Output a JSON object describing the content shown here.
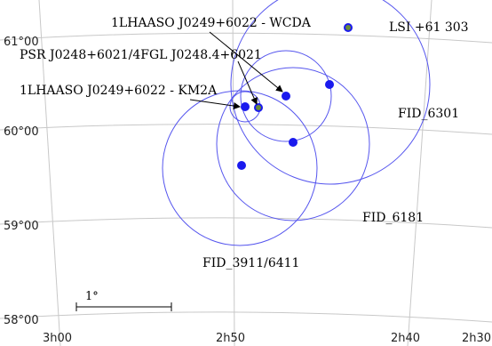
{
  "axes": {
    "dec_labels": [
      "61°00",
      "60°00",
      "59°00",
      "58°00"
    ],
    "ra_labels": [
      "3h00",
      "2h50",
      "2h40",
      "2h30"
    ]
  },
  "labels": {
    "wcda": "1LHAASO J0249+6022 - WCDA",
    "psr": "PSR J0248+6021/4FGL J0248.4+6021",
    "km2a": "1LHAASO J0249+6022 - KM2A",
    "lsi": "LSI +61 303",
    "fid6301": "FID_6301",
    "fid6181": "FID_6181",
    "fid3911": "FID_3911/6411"
  },
  "scale_bar": {
    "label": "1°"
  },
  "colors": {
    "circle": "#5555ee",
    "dot": "#1a1aee",
    "grid": "#c8c8c8",
    "arrow": "#000000"
  }
}
